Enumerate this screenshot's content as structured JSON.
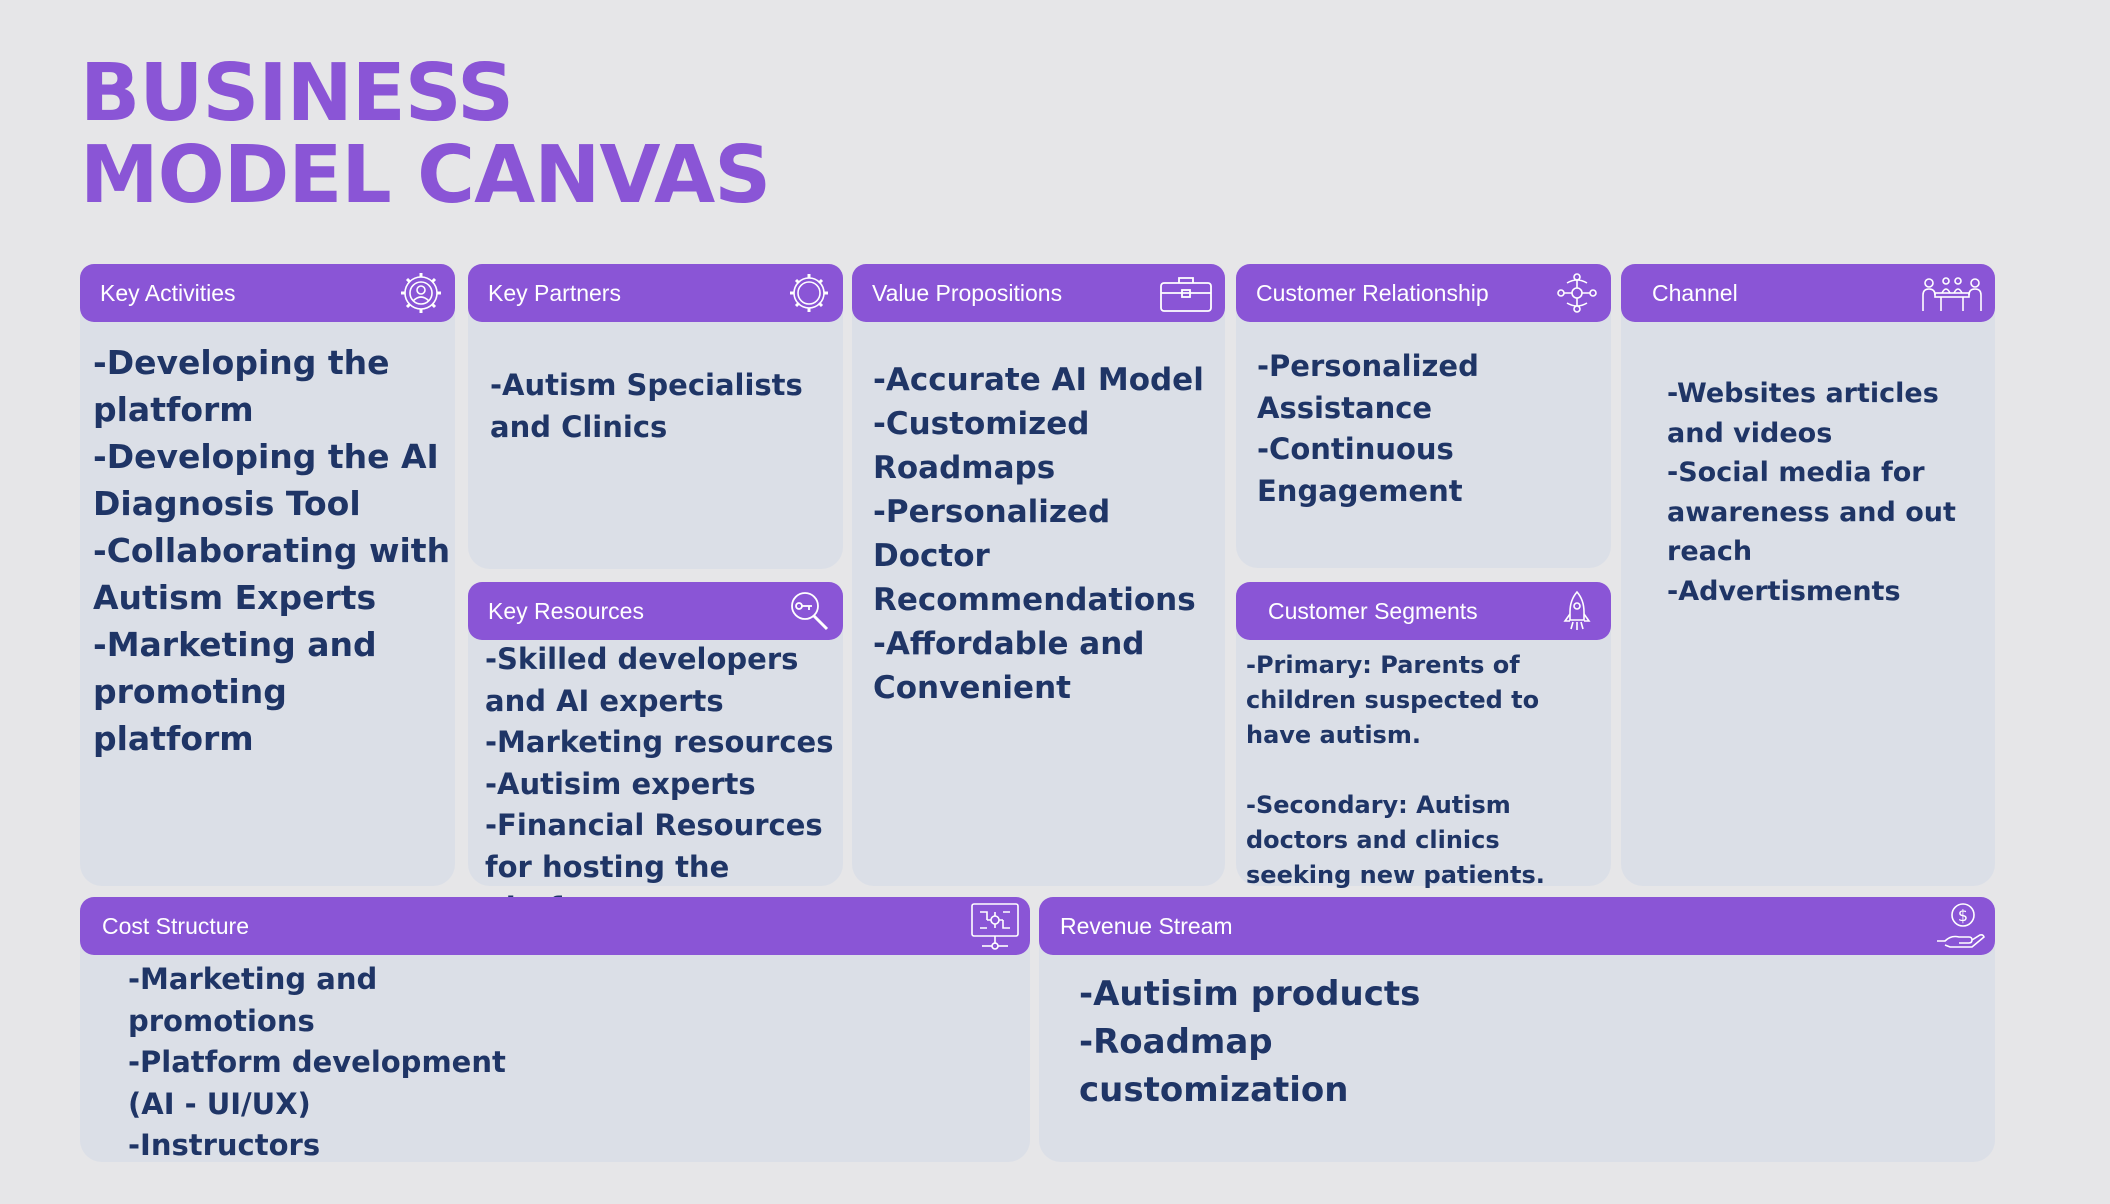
{
  "title": {
    "line1": "BUSINESS",
    "line2": "MODEL CANVAS"
  },
  "key_activities": {
    "header": "Key Activities",
    "icon": "gear-person-icon",
    "items": [
      "-Developing the platform",
      "-Developing the AI Diagnosis Tool",
      "-Collaborating with Autism Experts",
      "-Marketing and promoting platform"
    ]
  },
  "key_partners": {
    "header": "Key Partners",
    "icon": "gear-icon",
    "items": [
      "-Autism Specialists and Clinics"
    ]
  },
  "key_resources": {
    "header": "Key Resources",
    "icon": "magnifier-key-icon",
    "items": [
      "-Skilled developers and AI experts",
      "-Marketing resources",
      "-Autisim experts",
      "-Financial Resources for hosting the platform"
    ]
  },
  "value_propositions": {
    "header": "Value Propositions",
    "icon": "briefcase-icon",
    "items": [
      "-Accurate AI Model",
      "-Customized Roadmaps",
      "-Personalized Doctor Recommendations",
      "-Affordable and Convenient"
    ]
  },
  "customer_relationship": {
    "header": "Customer Relationship",
    "icon": "network-people-icon",
    "items": [
      "-Personalized Assistance",
      "-Continuous Engagement"
    ]
  },
  "customer_segments": {
    "header": "Customer Segments",
    "icon": "rocket-icon",
    "primary": "-Primary: Parents of children suspected to have autism.",
    "secondary": "-Secondary: Autism doctors and clinics seeking new patients."
  },
  "channel": {
    "header": "Channel",
    "icon": "meeting-table-icon",
    "items": [
      "-Websites articles and videos",
      "-Social media for awareness and out reach",
      "-Advertisments"
    ]
  },
  "cost_structure": {
    "header": "Cost Structure",
    "icon": "monitor-network-icon",
    "items": [
      "-Marketing and promotions",
      "-Platform development (AI - UI/UX)",
      "-Instructors"
    ]
  },
  "revenue_stream": {
    "header": "Revenue Stream",
    "icon": "hand-dollar-icon",
    "items": [
      "-Autisim products",
      "-Roadmap customization"
    ]
  },
  "colors": {
    "accent": "#8a55d6",
    "card": "#dbdfe7",
    "text": "#1f3566",
    "background": "#e6e6e8"
  }
}
